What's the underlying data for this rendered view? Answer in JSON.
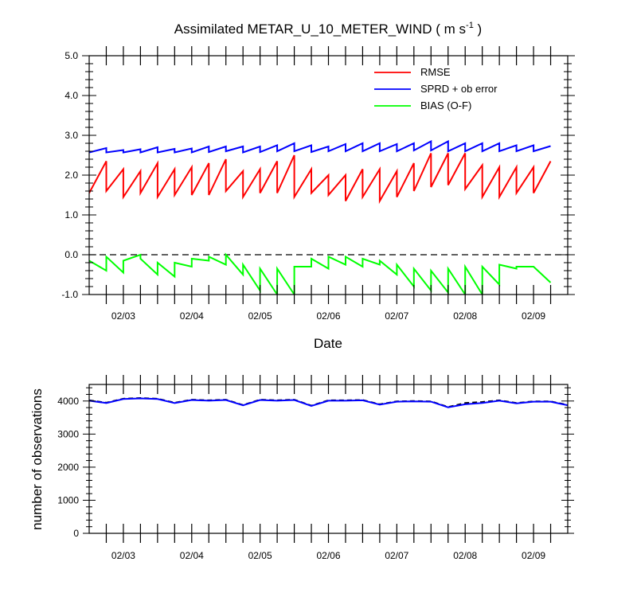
{
  "chart_data": [
    {
      "type": "line",
      "title": "Assimilated METAR_U_10_METER_WIND",
      "title_units": "( m s",
      "title_units_sup": "-1",
      "title_units_close": " )",
      "xlabel": "Date",
      "ylabel": "",
      "xlim": [
        0,
        28
      ],
      "ylim": [
        -1.0,
        5.0
      ],
      "y_ticks": [
        -1.0,
        0.0,
        1.0,
        2.0,
        3.0,
        4.0,
        5.0
      ],
      "y_tick_labels": [
        "-1.0",
        "0.0",
        "1.0",
        "2.0",
        "3.0",
        "4.0",
        "5.0"
      ],
      "x_tick_labels": [
        "02/03",
        "02/04",
        "02/05",
        "02/06",
        "02/07",
        "02/08",
        "02/09"
      ],
      "x_tick_positions": [
        2,
        6,
        10,
        14,
        18,
        22,
        26
      ],
      "zero_line": true,
      "legend_position": "top-right",
      "series": [
        {
          "name": "RMSE",
          "color": "#ff0000",
          "points": [
            [
              0,
              1.55
            ],
            [
              1,
              2.35
            ],
            [
              1,
              1.6
            ],
            [
              2,
              2.15
            ],
            [
              2,
              1.45
            ],
            [
              3,
              2.1
            ],
            [
              3,
              1.55
            ],
            [
              4,
              2.3
            ],
            [
              4,
              1.45
            ],
            [
              5,
              2.15
            ],
            [
              5,
              1.5
            ],
            [
              6,
              2.2
            ],
            [
              6,
              1.5
            ],
            [
              7,
              2.3
            ],
            [
              7,
              1.5
            ],
            [
              8,
              2.4
            ],
            [
              8,
              1.6
            ],
            [
              9,
              2.1
            ],
            [
              9,
              1.45
            ],
            [
              10,
              2.15
            ],
            [
              10,
              1.55
            ],
            [
              11,
              2.35
            ],
            [
              11,
              1.55
            ],
            [
              12,
              2.5
            ],
            [
              12,
              1.45
            ],
            [
              13,
              2.15
            ],
            [
              13,
              1.55
            ],
            [
              14,
              2.0
            ],
            [
              14,
              1.5
            ],
            [
              15,
              2.0
            ],
            [
              15,
              1.35
            ],
            [
              16,
              2.15
            ],
            [
              16,
              1.45
            ],
            [
              17,
              2.15
            ],
            [
              17,
              1.35
            ],
            [
              18,
              2.1
            ],
            [
              18,
              1.45
            ],
            [
              19,
              2.3
            ],
            [
              19,
              1.6
            ],
            [
              20,
              2.55
            ],
            [
              20,
              1.7
            ],
            [
              21,
              2.55
            ],
            [
              21,
              1.75
            ],
            [
              22,
              2.55
            ],
            [
              22,
              1.65
            ],
            [
              23,
              2.25
            ],
            [
              23,
              1.45
            ],
            [
              24,
              2.2
            ],
            [
              24,
              1.45
            ],
            [
              25,
              2.2
            ],
            [
              25,
              1.55
            ],
            [
              26,
              2.2
            ],
            [
              26,
              1.55
            ],
            [
              27,
              2.35
            ]
          ]
        },
        {
          "name": "SPRD + ob error",
          "color": "#0000ff",
          "points": [
            [
              0,
              2.57
            ],
            [
              1,
              2.68
            ],
            [
              1,
              2.57
            ],
            [
              2,
              2.63
            ],
            [
              2,
              2.57
            ],
            [
              3,
              2.65
            ],
            [
              3,
              2.57
            ],
            [
              4,
              2.7
            ],
            [
              4,
              2.57
            ],
            [
              5,
              2.66
            ],
            [
              5,
              2.57
            ],
            [
              6,
              2.67
            ],
            [
              6,
              2.57
            ],
            [
              7,
              2.72
            ],
            [
              7,
              2.58
            ],
            [
              8,
              2.72
            ],
            [
              8,
              2.6
            ],
            [
              9,
              2.72
            ],
            [
              9,
              2.57
            ],
            [
              10,
              2.72
            ],
            [
              10,
              2.58
            ],
            [
              11,
              2.75
            ],
            [
              11,
              2.6
            ],
            [
              12,
              2.8
            ],
            [
              12,
              2.6
            ],
            [
              13,
              2.75
            ],
            [
              13,
              2.58
            ],
            [
              14,
              2.72
            ],
            [
              14,
              2.6
            ],
            [
              15,
              2.78
            ],
            [
              15,
              2.6
            ],
            [
              16,
              2.8
            ],
            [
              16,
              2.6
            ],
            [
              17,
              2.8
            ],
            [
              17,
              2.6
            ],
            [
              18,
              2.78
            ],
            [
              18,
              2.6
            ],
            [
              19,
              2.8
            ],
            [
              19,
              2.62
            ],
            [
              20,
              2.85
            ],
            [
              20,
              2.62
            ],
            [
              21,
              2.85
            ],
            [
              21,
              2.6
            ],
            [
              22,
              2.8
            ],
            [
              22,
              2.6
            ],
            [
              23,
              2.8
            ],
            [
              23,
              2.6
            ],
            [
              24,
              2.8
            ],
            [
              24,
              2.6
            ],
            [
              25,
              2.75
            ],
            [
              25,
              2.6
            ],
            [
              26,
              2.75
            ],
            [
              26,
              2.6
            ],
            [
              27,
              2.73
            ]
          ]
        },
        {
          "name": "BIAS (O-F)",
          "color": "#00ff00",
          "points": [
            [
              0,
              -0.15
            ],
            [
              1,
              -0.4
            ],
            [
              1,
              -0.05
            ],
            [
              2,
              -0.45
            ],
            [
              2,
              -0.15
            ],
            [
              3,
              0.0
            ],
            [
              3,
              -0.1
            ],
            [
              4,
              -0.5
            ],
            [
              4,
              -0.2
            ],
            [
              5,
              -0.55
            ],
            [
              5,
              -0.2
            ],
            [
              6,
              -0.3
            ],
            [
              6,
              -0.1
            ],
            [
              7,
              -0.15
            ],
            [
              7,
              -0.05
            ],
            [
              8,
              -0.25
            ],
            [
              8,
              0.0
            ],
            [
              9,
              -0.5
            ],
            [
              9,
              -0.25
            ],
            [
              10,
              -0.9
            ],
            [
              10,
              -0.35
            ],
            [
              11,
              -1.0
            ],
            [
              11,
              -0.35
            ],
            [
              12,
              -1.0
            ],
            [
              12,
              -0.3
            ],
            [
              13,
              -0.3
            ],
            [
              13,
              -0.1
            ],
            [
              14,
              -0.35
            ],
            [
              14,
              -0.05
            ],
            [
              15,
              -0.25
            ],
            [
              15,
              -0.05
            ],
            [
              16,
              -0.3
            ],
            [
              16,
              -0.1
            ],
            [
              17,
              -0.25
            ],
            [
              17,
              -0.15
            ],
            [
              18,
              -0.5
            ],
            [
              18,
              -0.25
            ],
            [
              19,
              -0.8
            ],
            [
              19,
              -0.35
            ],
            [
              20,
              -0.9
            ],
            [
              20,
              -0.4
            ],
            [
              21,
              -0.95
            ],
            [
              21,
              -0.35
            ],
            [
              22,
              -1.0
            ],
            [
              22,
              -0.3
            ],
            [
              23,
              -1.0
            ],
            [
              23,
              -0.3
            ],
            [
              24,
              -0.75
            ],
            [
              24,
              -0.25
            ],
            [
              25,
              -0.35
            ],
            [
              25,
              -0.3
            ],
            [
              26,
              -0.3
            ],
            [
              26,
              -0.3
            ],
            [
              27,
              -0.7
            ]
          ]
        }
      ]
    },
    {
      "type": "line",
      "title": "",
      "xlabel": "",
      "ylabel": "number of observations",
      "xlim": [
        0,
        28
      ],
      "ylim": [
        0,
        4500
      ],
      "y_ticks": [
        0,
        1000,
        2000,
        3000,
        4000
      ],
      "y_tick_labels": [
        "0",
        "1000",
        "2000",
        "3000",
        "4000"
      ],
      "x_tick_labels": [
        "02/03",
        "02/04",
        "02/05",
        "02/06",
        "02/07",
        "02/08",
        "02/09"
      ],
      "x_tick_positions": [
        2,
        6,
        10,
        14,
        18,
        22,
        26
      ],
      "series": [
        {
          "color": "#000000",
          "dashed": true,
          "points": [
            [
              0,
              4020
            ],
            [
              1,
              3950
            ],
            [
              2,
              4070
            ],
            [
              3,
              4090
            ],
            [
              4,
              4070
            ],
            [
              5,
              3950
            ],
            [
              6,
              4040
            ],
            [
              7,
              4020
            ],
            [
              8,
              4040
            ],
            [
              9,
              3880
            ],
            [
              10,
              4040
            ],
            [
              11,
              4020
            ],
            [
              12,
              4040
            ],
            [
              13,
              3860
            ],
            [
              14,
              4020
            ],
            [
              15,
              4020
            ],
            [
              16,
              4030
            ],
            [
              17,
              3900
            ],
            [
              18,
              3990
            ],
            [
              19,
              4000
            ],
            [
              20,
              3990
            ],
            [
              21,
              3820
            ],
            [
              22,
              3940
            ],
            [
              23,
              3970
            ],
            [
              24,
              4020
            ],
            [
              25,
              3940
            ],
            [
              26,
              3990
            ],
            [
              27,
              3990
            ],
            [
              28,
              3880
            ]
          ]
        },
        {
          "color": "#0000ff",
          "points": [
            [
              0,
              4010
            ],
            [
              1,
              3940
            ],
            [
              2,
              4060
            ],
            [
              3,
              4080
            ],
            [
              4,
              4060
            ],
            [
              5,
              3940
            ],
            [
              6,
              4030
            ],
            [
              7,
              4010
            ],
            [
              8,
              4030
            ],
            [
              9,
              3870
            ],
            [
              10,
              4030
            ],
            [
              11,
              4010
            ],
            [
              12,
              4030
            ],
            [
              13,
              3850
            ],
            [
              14,
              4010
            ],
            [
              15,
              4010
            ],
            [
              16,
              4020
            ],
            [
              17,
              3890
            ],
            [
              18,
              3980
            ],
            [
              19,
              3990
            ],
            [
              20,
              3980
            ],
            [
              21,
              3810
            ],
            [
              22,
              3900
            ],
            [
              23,
              3940
            ],
            [
              24,
              4010
            ],
            [
              25,
              3930
            ],
            [
              26,
              3980
            ],
            [
              27,
              3980
            ],
            [
              28,
              3870
            ]
          ]
        }
      ]
    }
  ]
}
